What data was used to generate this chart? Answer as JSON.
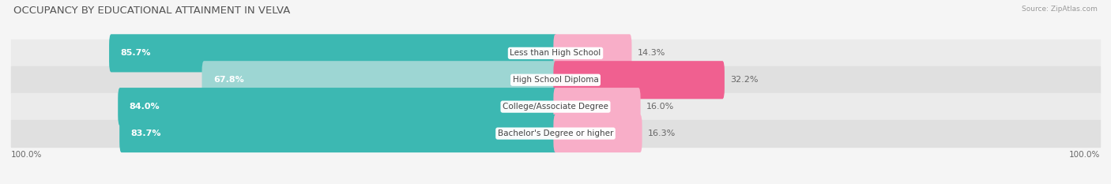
{
  "title": "OCCUPANCY BY EDUCATIONAL ATTAINMENT IN VELVA",
  "source": "Source: ZipAtlas.com",
  "categories": [
    "Less than High School",
    "High School Diploma",
    "College/Associate Degree",
    "Bachelor's Degree or higher"
  ],
  "owner_pct": [
    85.7,
    67.8,
    84.0,
    83.7
  ],
  "renter_pct": [
    14.3,
    32.2,
    16.0,
    16.3
  ],
  "owner_colors": [
    "#3cb8b2",
    "#9dd6d3",
    "#3cb8b2",
    "#3cb8b2"
  ],
  "renter_colors": [
    "#f8aec8",
    "#f06090",
    "#f8aec8",
    "#f8aec8"
  ],
  "row_bg_colors": [
    "#ebebeb",
    "#e0e0e0",
    "#ebebeb",
    "#e0e0e0"
  ],
  "figsize": [
    14.06,
    2.33
  ],
  "dpi": 100,
  "title_fontsize": 9.5,
  "owner_label_fontsize": 8,
  "renter_label_fontsize": 8,
  "cat_label_fontsize": 7.5,
  "legend_fontsize": 8,
  "axis_label_fontsize": 7.5
}
